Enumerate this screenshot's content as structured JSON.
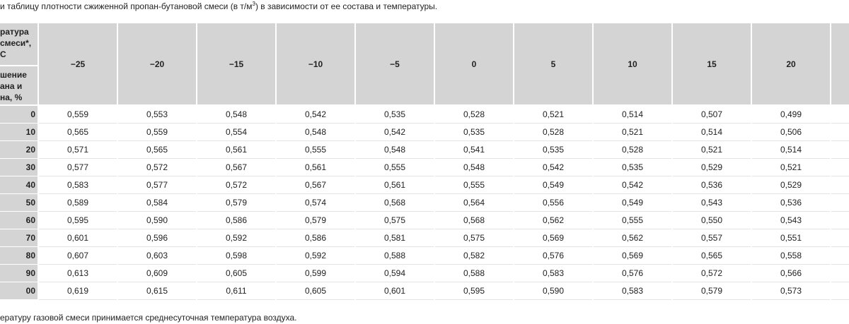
{
  "intro": {
    "before": "и таблицу плотности сжиженной пропан-бутановой смеси (в т/м",
    "sup": "3",
    "after": ") в зависимости от ее состава и температуры."
  },
  "table": {
    "corner_top": [
      "ратура",
      "смеси*,",
      "С"
    ],
    "corner_bottom": [
      "шение",
      "ана и",
      "на, %"
    ],
    "columns": [
      "−25",
      "−20",
      "−15",
      "−10",
      "−5",
      "0",
      "5",
      "10",
      "15",
      "20"
    ],
    "rows": [
      {
        "label": "0",
        "values": [
          "0,559",
          "0,553",
          "0,548",
          "0,542",
          "0,535",
          "0,528",
          "0,521",
          "0,514",
          "0,507",
          "0,499"
        ]
      },
      {
        "label": "10",
        "values": [
          "0,565",
          "0,559",
          "0,554",
          "0,548",
          "0,542",
          "0,535",
          "0,528",
          "0,521",
          "0,514",
          "0,506"
        ]
      },
      {
        "label": "20",
        "values": [
          "0,571",
          "0,565",
          "0,561",
          "0,555",
          "0,548",
          "0,541",
          "0,535",
          "0,528",
          "0,521",
          "0,514"
        ]
      },
      {
        "label": "30",
        "values": [
          "0,577",
          "0,572",
          "0,567",
          "0,561",
          "0,555",
          "0,548",
          "0,542",
          "0,535",
          "0,529",
          "0,521"
        ]
      },
      {
        "label": "40",
        "values": [
          "0,583",
          "0,577",
          "0,572",
          "0,567",
          "0,561",
          "0,555",
          "0,549",
          "0,542",
          "0,536",
          "0,529"
        ]
      },
      {
        "label": "50",
        "values": [
          "0,589",
          "0,584",
          "0,579",
          "0,574",
          "0,568",
          "0,564",
          "0,556",
          "0,549",
          "0,543",
          "0,536"
        ]
      },
      {
        "label": "60",
        "values": [
          "0,595",
          "0,590",
          "0,586",
          "0,579",
          "0,575",
          "0,568",
          "0,562",
          "0,555",
          "0,550",
          "0,543"
        ]
      },
      {
        "label": "70",
        "values": [
          "0,601",
          "0,596",
          "0,592",
          "0,586",
          "0,581",
          "0,575",
          "0,569",
          "0,562",
          "0,557",
          "0,551"
        ]
      },
      {
        "label": "80",
        "values": [
          "0,607",
          "0,603",
          "0,598",
          "0,592",
          "0,588",
          "0,582",
          "0,576",
          "0,569",
          "0,565",
          "0,558"
        ]
      },
      {
        "label": "90",
        "values": [
          "0,613",
          "0,609",
          "0,605",
          "0,599",
          "0,594",
          "0,588",
          "0,583",
          "0,576",
          "0,572",
          "0,566"
        ]
      },
      {
        "label": "00",
        "values": [
          "0,619",
          "0,615",
          "0,611",
          "0,605",
          "0,601",
          "0,595",
          "0,590",
          "0,583",
          "0,579",
          "0,573"
        ]
      }
    ]
  },
  "footnote": "ературу газовой смеси принимается среднесуточная температура воздуха."
}
